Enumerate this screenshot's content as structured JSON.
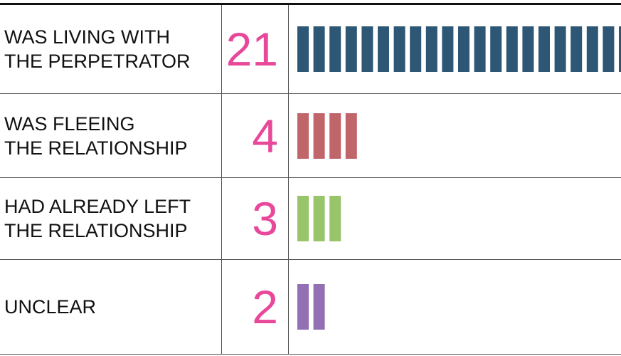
{
  "chart_data": {
    "type": "tally",
    "categories": [
      "WAS LIVING WITH\nTHE PERPETRATOR",
      "WAS FLEEING\nTHE RELATIONSHIP",
      "HAD ALREADY LEFT\nTHE RELATIONSHIP",
      "UNCLEAR"
    ],
    "values": [
      21,
      4,
      3,
      2
    ],
    "colors": [
      "#2e5775",
      "#c0666a",
      "#98c46a",
      "#9370b4"
    ],
    "number_color": "#e8479a"
  }
}
